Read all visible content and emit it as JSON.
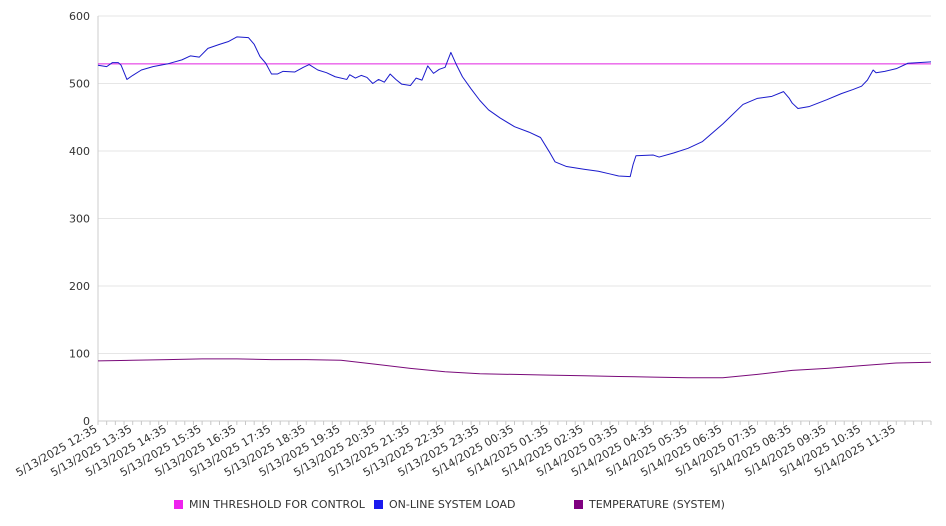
{
  "chart_data": {
    "type": "line",
    "title": "",
    "xlabel": "",
    "ylabel": "",
    "ylim": [
      0,
      600
    ],
    "y_ticks": [
      0,
      100,
      200,
      300,
      400,
      500,
      600
    ],
    "grid": true,
    "legend_position": "bottom",
    "x_tick_labels": [
      "5/13/2025 12:35",
      "5/13/2025 13:35",
      "5/13/2025 14:35",
      "5/13/2025 15:35",
      "5/13/2025 16:35",
      "5/13/2025 17:35",
      "5/13/2025 18:35",
      "5/13/2025 19:35",
      "5/13/2025 20:35",
      "5/13/2025 21:35",
      "5/13/2025 22:35",
      "5/13/2025 23:35",
      "5/14/2025 00:35",
      "5/14/2025 01:35",
      "5/14/2025 02:35",
      "5/14/2025 03:35",
      "5/14/2025 04:35",
      "5/14/2025 05:35",
      "5/14/2025 06:35",
      "5/14/2025 07:35",
      "5/14/2025 08:35",
      "5/14/2025 09:35",
      "5/14/2025 10:35",
      "5/14/2025 11:35"
    ],
    "x_range": [
      "5/13/2025 12:35",
      "5/14/2025 12:35"
    ],
    "series": [
      {
        "name": "MIN THRESHOLD FOR CONTROL",
        "color": "#e020e0",
        "legend_swatch_color": "#ee22ee",
        "points": [
          [
            "5/13/2025 12:35",
            529
          ],
          [
            "5/14/2025 12:35",
            529
          ]
        ]
      },
      {
        "name": "ON-LINE SYSTEM LOAD",
        "color": "#1a1acc",
        "legend_swatch_color": "#1a1aee",
        "points": [
          [
            "5/13/2025 12:35",
            527
          ],
          [
            "5/13/2025 12:50",
            525
          ],
          [
            "5/13/2025 13:00",
            531
          ],
          [
            "5/13/2025 13:10",
            531
          ],
          [
            "5/13/2025 13:15",
            527
          ],
          [
            "5/13/2025 13:25",
            506
          ],
          [
            "5/13/2025 13:35",
            512
          ],
          [
            "5/13/2025 13:50",
            520
          ],
          [
            "5/13/2025 14:10",
            525
          ],
          [
            "5/13/2025 14:35",
            529
          ],
          [
            "5/13/2025 15:00",
            535
          ],
          [
            "5/13/2025 15:15",
            541
          ],
          [
            "5/13/2025 15:30",
            539
          ],
          [
            "5/13/2025 15:45",
            552
          ],
          [
            "5/13/2025 16:05",
            558
          ],
          [
            "5/13/2025 16:20",
            562
          ],
          [
            "5/13/2025 16:35",
            569
          ],
          [
            "5/13/2025 16:55",
            568
          ],
          [
            "5/13/2025 17:05",
            558
          ],
          [
            "5/13/2025 17:15",
            540
          ],
          [
            "5/13/2025 17:25",
            530
          ],
          [
            "5/13/2025 17:35",
            514
          ],
          [
            "5/13/2025 17:45",
            514
          ],
          [
            "5/13/2025 17:55",
            518
          ],
          [
            "5/13/2025 18:15",
            517
          ],
          [
            "5/13/2025 18:30",
            524
          ],
          [
            "5/13/2025 18:40",
            528
          ],
          [
            "5/13/2025 18:55",
            520
          ],
          [
            "5/13/2025 19:10",
            516
          ],
          [
            "5/13/2025 19:25",
            510
          ],
          [
            "5/13/2025 19:45",
            506
          ],
          [
            "5/13/2025 19:50",
            513
          ],
          [
            "5/13/2025 20:00",
            508
          ],
          [
            "5/13/2025 20:10",
            512
          ],
          [
            "5/13/2025 20:20",
            509
          ],
          [
            "5/13/2025 20:30",
            500
          ],
          [
            "5/13/2025 20:40",
            506
          ],
          [
            "5/13/2025 20:50",
            502
          ],
          [
            "5/13/2025 21:00",
            514
          ],
          [
            "5/13/2025 21:10",
            506
          ],
          [
            "5/13/2025 21:20",
            499
          ],
          [
            "5/13/2025 21:35",
            497
          ],
          [
            "5/13/2025 21:45",
            508
          ],
          [
            "5/13/2025 21:55",
            505
          ],
          [
            "5/13/2025 22:05",
            526
          ],
          [
            "5/13/2025 22:15",
            515
          ],
          [
            "5/13/2025 22:25",
            521
          ],
          [
            "5/13/2025 22:35",
            524
          ],
          [
            "5/13/2025 22:45",
            546
          ],
          [
            "5/13/2025 22:55",
            527
          ],
          [
            "5/13/2025 23:05",
            510
          ],
          [
            "5/13/2025 23:20",
            492
          ],
          [
            "5/13/2025 23:35",
            475
          ],
          [
            "5/13/2025 23:50",
            461
          ],
          [
            "5/14/2025 00:10",
            449
          ],
          [
            "5/14/2025 00:35",
            436
          ],
          [
            "5/14/2025 01:00",
            428
          ],
          [
            "5/14/2025 01:20",
            420
          ],
          [
            "5/14/2025 01:35",
            399
          ],
          [
            "5/14/2025 01:45",
            384
          ],
          [
            "5/14/2025 02:05",
            377
          ],
          [
            "5/14/2025 02:35",
            373
          ],
          [
            "5/14/2025 03:00",
            370
          ],
          [
            "5/14/2025 03:20",
            366
          ],
          [
            "5/14/2025 03:35",
            363
          ],
          [
            "5/14/2025 03:55",
            362
          ],
          [
            "5/14/2025 04:00",
            380
          ],
          [
            "5/14/2025 04:05",
            393
          ],
          [
            "5/14/2025 04:35",
            394
          ],
          [
            "5/14/2025 04:45",
            391
          ],
          [
            "5/14/2025 05:10",
            397
          ],
          [
            "5/14/2025 05:35",
            404
          ],
          [
            "5/14/2025 06:00",
            414
          ],
          [
            "5/14/2025 06:35",
            440
          ],
          [
            "5/14/2025 07:10",
            469
          ],
          [
            "5/14/2025 07:35",
            478
          ],
          [
            "5/14/2025 08:00",
            481
          ],
          [
            "5/14/2025 08:20",
            488
          ],
          [
            "5/14/2025 08:30",
            478
          ],
          [
            "5/14/2025 08:35",
            471
          ],
          [
            "5/14/2025 08:45",
            463
          ],
          [
            "5/14/2025 09:05",
            466
          ],
          [
            "5/14/2025 09:35",
            476
          ],
          [
            "5/14/2025 10:00",
            485
          ],
          [
            "5/14/2025 10:20",
            491
          ],
          [
            "5/14/2025 10:35",
            496
          ],
          [
            "5/14/2025 10:45",
            505
          ],
          [
            "5/14/2025 10:55",
            520
          ],
          [
            "5/14/2025 11:00",
            516
          ],
          [
            "5/14/2025 11:15",
            518
          ],
          [
            "5/14/2025 11:35",
            522
          ],
          [
            "5/14/2025 11:55",
            530
          ],
          [
            "5/14/2025 12:35",
            532
          ]
        ]
      },
      {
        "name": "TEMPERATURE (SYSTEM)",
        "color": "#7a0a7a",
        "legend_swatch_color": "#800080",
        "points": [
          [
            "5/13/2025 12:35",
            89
          ],
          [
            "5/13/2025 13:35",
            90
          ],
          [
            "5/13/2025 14:35",
            91
          ],
          [
            "5/13/2025 15:35",
            92
          ],
          [
            "5/13/2025 16:35",
            92
          ],
          [
            "5/13/2025 17:35",
            91
          ],
          [
            "5/13/2025 18:35",
            91
          ],
          [
            "5/13/2025 19:35",
            90
          ],
          [
            "5/13/2025 20:35",
            84
          ],
          [
            "5/13/2025 21:35",
            78
          ],
          [
            "5/13/2025 22:35",
            73
          ],
          [
            "5/13/2025 23:35",
            70
          ],
          [
            "5/14/2025 00:35",
            69
          ],
          [
            "5/14/2025 01:35",
            68
          ],
          [
            "5/14/2025 02:35",
            67
          ],
          [
            "5/14/2025 03:35",
            66
          ],
          [
            "5/14/2025 04:35",
            65
          ],
          [
            "5/14/2025 05:35",
            64
          ],
          [
            "5/14/2025 06:35",
            64
          ],
          [
            "5/14/2025 07:35",
            69
          ],
          [
            "5/14/2025 08:35",
            75
          ],
          [
            "5/14/2025 09:35",
            78
          ],
          [
            "5/14/2025 10:35",
            82
          ],
          [
            "5/14/2025 11:35",
            86
          ],
          [
            "5/14/2025 12:35",
            87
          ]
        ]
      }
    ]
  }
}
